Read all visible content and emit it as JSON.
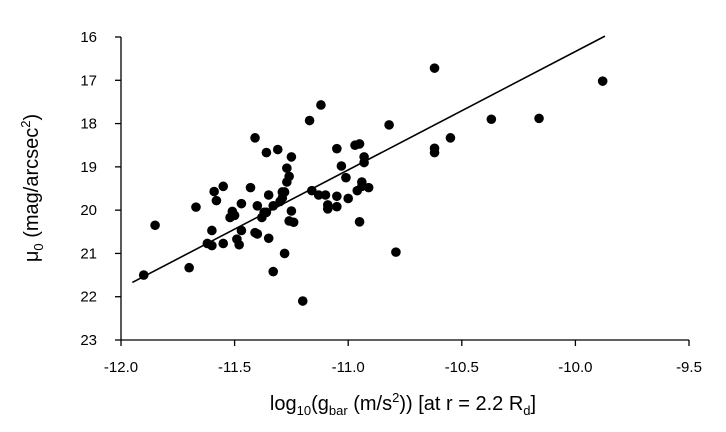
{
  "chart_data": {
    "type": "scatter",
    "xlabel": {
      "base": "log",
      "base_sub": "10",
      "paren_open": "(g",
      "g_sub": "bar",
      "units_open": " (m/s",
      "units_sup": "2",
      "units_close": "))   [at r = 2.2 R",
      "rd_sub": "d",
      "close": "]"
    },
    "ylabel": {
      "mu": "μ",
      "mu_sub": "0",
      "units_open": "  (mag/arcsec",
      "units_sup": "2",
      "units_close": ")"
    },
    "xlim": [
      -12.0,
      -9.5
    ],
    "ylim": [
      16,
      23
    ],
    "y_inverted": true,
    "x_ticks": [
      "-12.0",
      "-11.5",
      "-11.0",
      "-10.5",
      "-10.0",
      "-9.5"
    ],
    "x_tick_values": [
      -12.0,
      -11.5,
      -11.0,
      -10.5,
      -10.0,
      -9.5
    ],
    "y_ticks": [
      "16",
      "17",
      "18",
      "19",
      "20",
      "21",
      "22",
      "23"
    ],
    "y_tick_values": [
      16,
      17,
      18,
      19,
      20,
      21,
      22,
      23
    ],
    "grid": false,
    "legend": "none",
    "marker_color": "#000000",
    "fit_line": {
      "x": [
        -11.95,
        -9.87
      ],
      "y": [
        21.67,
        15.98
      ],
      "color": "#000000"
    },
    "points": [
      {
        "x": -11.9,
        "y": 21.5
      },
      {
        "x": -11.85,
        "y": 20.35
      },
      {
        "x": -11.7,
        "y": 21.33
      },
      {
        "x": -11.67,
        "y": 19.93
      },
      {
        "x": -11.62,
        "y": 20.77
      },
      {
        "x": -11.6,
        "y": 20.82
      },
      {
        "x": -11.6,
        "y": 20.47
      },
      {
        "x": -11.59,
        "y": 19.57
      },
      {
        "x": -11.58,
        "y": 19.78
      },
      {
        "x": -11.55,
        "y": 19.45
      },
      {
        "x": -11.55,
        "y": 20.77
      },
      {
        "x": -11.52,
        "y": 20.17
      },
      {
        "x": -11.51,
        "y": 20.03
      },
      {
        "x": -11.5,
        "y": 20.12
      },
      {
        "x": -11.49,
        "y": 20.67
      },
      {
        "x": -11.48,
        "y": 20.8
      },
      {
        "x": -11.47,
        "y": 20.47
      },
      {
        "x": -11.47,
        "y": 19.85
      },
      {
        "x": -11.43,
        "y": 19.48
      },
      {
        "x": -11.41,
        "y": 18.33
      },
      {
        "x": -11.41,
        "y": 20.52
      },
      {
        "x": -11.4,
        "y": 20.55
      },
      {
        "x": -11.4,
        "y": 19.9
      },
      {
        "x": -11.38,
        "y": 20.17
      },
      {
        "x": -11.37,
        "y": 20.05
      },
      {
        "x": -11.36,
        "y": 20.05
      },
      {
        "x": -11.36,
        "y": 18.67
      },
      {
        "x": -11.35,
        "y": 19.65
      },
      {
        "x": -11.35,
        "y": 20.65
      },
      {
        "x": -11.33,
        "y": 21.42
      },
      {
        "x": -11.33,
        "y": 19.9
      },
      {
        "x": -11.31,
        "y": 18.6
      },
      {
        "x": -11.3,
        "y": 19.8
      },
      {
        "x": -11.29,
        "y": 19.58
      },
      {
        "x": -11.29,
        "y": 19.72
      },
      {
        "x": -11.28,
        "y": 19.58
      },
      {
        "x": -11.28,
        "y": 21.0
      },
      {
        "x": -11.27,
        "y": 19.03
      },
      {
        "x": -11.27,
        "y": 19.35
      },
      {
        "x": -11.26,
        "y": 19.22
      },
      {
        "x": -11.26,
        "y": 20.25
      },
      {
        "x": -11.25,
        "y": 20.02
      },
      {
        "x": -11.25,
        "y": 18.77
      },
      {
        "x": -11.24,
        "y": 20.28
      },
      {
        "x": -11.2,
        "y": 22.1
      },
      {
        "x": -11.17,
        "y": 17.93
      },
      {
        "x": -11.16,
        "y": 19.55
      },
      {
        "x": -11.13,
        "y": 19.65
      },
      {
        "x": -11.12,
        "y": 17.57
      },
      {
        "x": -11.1,
        "y": 19.65
      },
      {
        "x": -11.09,
        "y": 19.88
      },
      {
        "x": -11.09,
        "y": 19.97
      },
      {
        "x": -11.05,
        "y": 19.68
      },
      {
        "x": -11.05,
        "y": 19.92
      },
      {
        "x": -11.05,
        "y": 18.58
      },
      {
        "x": -11.03,
        "y": 18.98
      },
      {
        "x": -11.01,
        "y": 19.25
      },
      {
        "x": -11.0,
        "y": 19.73
      },
      {
        "x": -10.97,
        "y": 18.5
      },
      {
        "x": -10.96,
        "y": 19.55
      },
      {
        "x": -10.95,
        "y": 18.47
      },
      {
        "x": -10.95,
        "y": 20.27
      },
      {
        "x": -10.94,
        "y": 19.45
      },
      {
        "x": -10.94,
        "y": 19.35
      },
      {
        "x": -10.93,
        "y": 18.77
      },
      {
        "x": -10.93,
        "y": 18.9
      },
      {
        "x": -10.91,
        "y": 19.48
      },
      {
        "x": -10.82,
        "y": 18.03
      },
      {
        "x": -10.79,
        "y": 20.97
      },
      {
        "x": -10.62,
        "y": 16.72
      },
      {
        "x": -10.62,
        "y": 18.57
      },
      {
        "x": -10.62,
        "y": 18.67
      },
      {
        "x": -10.55,
        "y": 18.33
      },
      {
        "x": -10.37,
        "y": 17.9
      },
      {
        "x": -10.16,
        "y": 17.88
      },
      {
        "x": -9.88,
        "y": 17.02
      }
    ]
  }
}
